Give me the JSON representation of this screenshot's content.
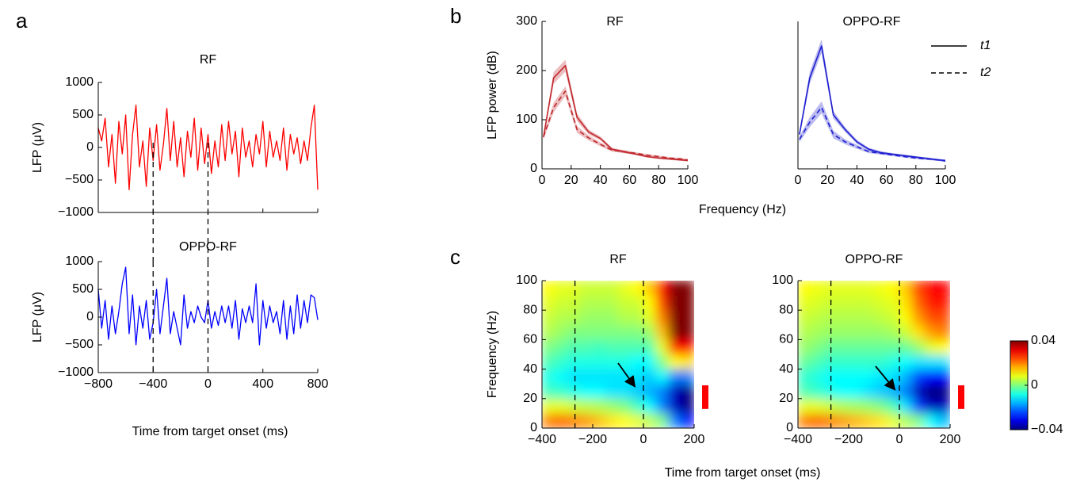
{
  "panel_labels": [
    "a",
    "b",
    "c"
  ],
  "shared_labels": {
    "a_xlabel": "Time from target onset (ms)",
    "b_xlabel": "Frequency (Hz)",
    "c_xlabel": "Time from target onset (ms)"
  },
  "chart_data": [
    {
      "type": "line",
      "title": "RF",
      "ylabel": "LFP (μV)",
      "x": [
        -800,
        -775,
        -750,
        -725,
        -700,
        -675,
        -650,
        -625,
        -600,
        -575,
        -550,
        -525,
        -500,
        -475,
        -450,
        -425,
        -400,
        -375,
        -350,
        -325,
        -300,
        -275,
        -250,
        -225,
        -200,
        -175,
        -150,
        -125,
        -100,
        -75,
        -50,
        -25,
        0,
        25,
        50,
        75,
        100,
        125,
        150,
        175,
        200,
        225,
        250,
        275,
        300,
        325,
        350,
        375,
        400,
        425,
        450,
        475,
        500,
        525,
        550,
        575,
        600,
        625,
        650,
        675,
        700,
        725,
        750,
        775,
        800
      ],
      "series": [
        {
          "color": "#ff0000",
          "values": [
            300,
            100,
            450,
            -300,
            200,
            -550,
            400,
            -100,
            500,
            -650,
            200,
            650,
            -300,
            100,
            -600,
            300,
            -200,
            350,
            -350,
            50,
            600,
            -200,
            400,
            -300,
            150,
            -450,
            250,
            -150,
            450,
            -350,
            300,
            -250,
            200,
            -400,
            100,
            -300,
            350,
            -200,
            400,
            -100,
            250,
            -450,
            300,
            -150,
            100,
            -300,
            200,
            -100,
            400,
            -300,
            250,
            -150,
            100,
            -200,
            300,
            -350,
            200,
            -100,
            150,
            -250,
            100,
            -200,
            300,
            650,
            -650
          ]
        }
      ],
      "xlim": [
        -800,
        800
      ],
      "ylim": [
        -1000,
        1000
      ],
      "xticks": [
        {
          "value": -800,
          "label": "−800"
        },
        {
          "value": -400,
          "label": "−400"
        },
        0,
        400,
        800
      ],
      "show_xtick_labels": false,
      "yticks": [
        {
          "value": -1000,
          "label": "−1000"
        },
        {
          "value": -500,
          "label": "−500"
        },
        0,
        500,
        1000
      ],
      "vlines": [
        -400,
        0
      ]
    },
    {
      "type": "line",
      "title": "OPPO-RF",
      "ylabel": "LFP (μV)",
      "x": [
        -800,
        -775,
        -750,
        -725,
        -700,
        -675,
        -650,
        -625,
        -600,
        -575,
        -550,
        -525,
        -500,
        -475,
        -450,
        -425,
        -400,
        -375,
        -350,
        -325,
        -300,
        -275,
        -250,
        -225,
        -200,
        -175,
        -150,
        -125,
        -100,
        -75,
        -50,
        -25,
        0,
        25,
        50,
        75,
        100,
        125,
        150,
        175,
        200,
        225,
        250,
        275,
        300,
        325,
        350,
        375,
        400,
        425,
        450,
        475,
        500,
        525,
        550,
        575,
        600,
        625,
        650,
        675,
        700,
        725,
        750,
        775,
        800
      ],
      "series": [
        {
          "color": "#0000ff",
          "values": [
            500,
            -200,
            300,
            -400,
            200,
            -300,
            100,
            600,
            900,
            -300,
            400,
            -500,
            200,
            -200,
            300,
            -400,
            -100,
            500,
            -300,
            200,
            700,
            -300,
            100,
            -200,
            -500,
            400,
            -200,
            100,
            -100,
            200,
            0,
            -100,
            300,
            -200,
            100,
            -150,
            200,
            -100,
            200,
            -200,
            300,
            -400,
            150,
            -100,
            200,
            -100,
            600,
            -500,
            300,
            -200,
            200,
            -100,
            100,
            -300,
            300,
            -400,
            200,
            -300,
            400,
            -200,
            300,
            -100,
            400,
            350,
            -50
          ]
        }
      ],
      "xlim": [
        -800,
        800
      ],
      "ylim": [
        -1000,
        1000
      ],
      "xticks": [
        {
          "value": -800,
          "label": "−800"
        },
        {
          "value": -400,
          "label": "−400"
        },
        0,
        400,
        800
      ],
      "show_xtick_labels": true,
      "yticks": [
        {
          "value": -1000,
          "label": "−1000"
        },
        {
          "value": -500,
          "label": "−500"
        },
        0,
        500,
        1000
      ],
      "vlines": [
        -400,
        0
      ]
    },
    {
      "type": "line",
      "title": "RF",
      "ylabel": "LFP power (dB)",
      "x": [
        1,
        8,
        16,
        24,
        32,
        40,
        48,
        56,
        64,
        72,
        80,
        88,
        96,
        100
      ],
      "series": [
        {
          "name": "t1",
          "color": "#c0282d",
          "dash": false,
          "values": [
            65,
            185,
            210,
            105,
            75,
            62,
            40,
            35,
            30,
            25,
            22,
            20,
            18,
            17
          ],
          "errors": [
            5,
            12,
            12,
            8,
            5,
            4,
            3,
            3,
            2,
            2,
            2,
            2,
            2,
            2
          ]
        },
        {
          "name": "t2",
          "color": "#c0282d",
          "dash": true,
          "values": [
            65,
            125,
            158,
            80,
            63,
            50,
            38,
            35,
            32,
            28,
            25,
            22,
            20,
            18
          ],
          "errors": [
            5,
            10,
            10,
            7,
            5,
            4,
            3,
            3,
            2,
            2,
            2,
            2,
            2,
            2
          ]
        }
      ],
      "xlim": [
        0,
        100
      ],
      "ylim": [
        0,
        300
      ],
      "xticks": [
        0,
        20,
        40,
        60,
        80,
        100
      ],
      "show_xtick_labels": true,
      "yticks": [
        0,
        100,
        200,
        300
      ]
    },
    {
      "type": "line",
      "title": "OPPO-RF",
      "x": [
        1,
        8,
        16,
        24,
        32,
        40,
        48,
        56,
        64,
        72,
        80,
        88,
        96,
        100
      ],
      "series": [
        {
          "name": "t1",
          "color": "#1f1fd0",
          "dash": false,
          "values": [
            70,
            185,
            250,
            110,
            80,
            55,
            40,
            33,
            30,
            27,
            24,
            21,
            18,
            17
          ],
          "errors": [
            6,
            12,
            14,
            8,
            5,
            4,
            3,
            3,
            2,
            2,
            2,
            2,
            2,
            2
          ]
        },
        {
          "name": "t2",
          "color": "#1f1fd0",
          "dash": true,
          "values": [
            60,
            95,
            125,
            70,
            55,
            45,
            35,
            32,
            28,
            25,
            22,
            20,
            18,
            16
          ],
          "errors": [
            6,
            10,
            12,
            8,
            5,
            4,
            3,
            3,
            2,
            2,
            2,
            2,
            2,
            2
          ]
        }
      ],
      "xlim": [
        0,
        100
      ],
      "ylim": [
        0,
        300
      ],
      "xticks": [
        0,
        20,
        40,
        60,
        80,
        100
      ],
      "show_xtick_labels": true,
      "legend": "upper right"
    },
    {
      "type": "heatmap",
      "title": "RF",
      "ylabel": "Frequency (Hz)",
      "x": [
        -375,
        -325,
        -275,
        -225,
        -175,
        -125,
        -75,
        -25,
        25,
        75,
        125,
        175
      ],
      "y": [
        5,
        15,
        25,
        35,
        45,
        55,
        65,
        75,
        85,
        95
      ],
      "values": [
        [
          0.02,
          0.022,
          0.02,
          0.018,
          0.015,
          0.012,
          0.01,
          0.008,
          0.005,
          0.0,
          -0.02,
          -0.03
        ],
        [
          0.008,
          0.008,
          0.006,
          0.005,
          0.004,
          0.002,
          0.0,
          -0.005,
          -0.01,
          -0.02,
          -0.035,
          -0.04
        ],
        [
          -0.005,
          -0.006,
          -0.008,
          -0.01,
          -0.01,
          -0.012,
          -0.012,
          -0.014,
          -0.016,
          -0.02,
          -0.035,
          -0.04
        ],
        [
          -0.008,
          -0.01,
          -0.012,
          -0.012,
          -0.012,
          -0.012,
          -0.012,
          -0.012,
          -0.014,
          -0.01,
          -0.02,
          -0.02
        ],
        [
          -0.004,
          -0.006,
          -0.008,
          -0.008,
          -0.008,
          -0.008,
          -0.008,
          -0.01,
          -0.01,
          0.0,
          0.01,
          0.012
        ],
        [
          0.0,
          -0.002,
          -0.004,
          -0.004,
          -0.005,
          -0.004,
          -0.004,
          -0.004,
          -0.004,
          0.008,
          0.03,
          0.03
        ],
        [
          0.004,
          0.002,
          0.0,
          0.0,
          0.0,
          0.0,
          0.0,
          0.0,
          0.002,
          0.015,
          0.04,
          0.04
        ],
        [
          0.006,
          0.004,
          0.004,
          0.002,
          0.002,
          0.002,
          0.004,
          0.004,
          0.008,
          0.02,
          0.04,
          0.04
        ],
        [
          0.008,
          0.006,
          0.006,
          0.004,
          0.004,
          0.004,
          0.006,
          0.006,
          0.01,
          0.025,
          0.04,
          0.04
        ],
        [
          0.01,
          0.008,
          0.008,
          0.006,
          0.006,
          0.006,
          0.008,
          0.01,
          0.014,
          0.03,
          0.04,
          0.04
        ]
      ],
      "clim": [
        -0.04,
        0.04
      ],
      "colormap": "jet",
      "xlim": [
        -400,
        200
      ],
      "ylim": [
        0,
        100
      ],
      "xticks": [
        {
          "value": -400,
          "label": "−400"
        },
        {
          "value": -200,
          "label": "−200"
        },
        0,
        200
      ],
      "show_xtick_labels": true,
      "yticks": [
        0,
        20,
        40,
        60,
        80,
        100
      ],
      "vlines": [
        -270,
        0
      ],
      "highlight": [
        13,
        29
      ],
      "highlight_color": "#ff0000"
    },
    {
      "type": "heatmap",
      "title": "OPPO-RF",
      "x": [
        -375,
        -325,
        -275,
        -225,
        -175,
        -125,
        -75,
        -25,
        25,
        75,
        125,
        175
      ],
      "y": [
        5,
        15,
        25,
        35,
        45,
        55,
        65,
        75,
        85,
        95
      ],
      "values": [
        [
          0.02,
          0.022,
          0.02,
          0.018,
          0.016,
          0.014,
          0.012,
          0.008,
          0.004,
          0.0,
          -0.01,
          -0.015
        ],
        [
          0.008,
          0.008,
          0.006,
          0.004,
          0.003,
          0.002,
          0.0,
          -0.004,
          -0.012,
          -0.025,
          -0.035,
          -0.035
        ],
        [
          -0.004,
          -0.006,
          -0.008,
          -0.01,
          -0.01,
          -0.012,
          -0.014,
          -0.016,
          -0.02,
          -0.035,
          -0.04,
          -0.04
        ],
        [
          -0.006,
          -0.008,
          -0.01,
          -0.01,
          -0.01,
          -0.01,
          -0.012,
          -0.012,
          -0.016,
          -0.025,
          -0.03,
          -0.03
        ],
        [
          -0.002,
          -0.004,
          -0.006,
          -0.006,
          -0.006,
          -0.006,
          -0.006,
          -0.008,
          -0.01,
          -0.012,
          -0.012,
          -0.012
        ],
        [
          0.002,
          0.0,
          -0.002,
          -0.002,
          -0.002,
          -0.002,
          -0.002,
          -0.002,
          -0.002,
          0.002,
          0.008,
          0.01
        ],
        [
          0.004,
          0.003,
          0.002,
          0.002,
          0.002,
          0.002,
          0.002,
          0.003,
          0.006,
          0.012,
          0.018,
          0.02
        ],
        [
          0.006,
          0.005,
          0.004,
          0.004,
          0.004,
          0.004,
          0.005,
          0.006,
          0.01,
          0.018,
          0.024,
          0.024
        ],
        [
          0.008,
          0.007,
          0.006,
          0.006,
          0.006,
          0.006,
          0.007,
          0.008,
          0.012,
          0.022,
          0.028,
          0.028
        ],
        [
          0.01,
          0.009,
          0.008,
          0.008,
          0.008,
          0.008,
          0.009,
          0.01,
          0.014,
          0.025,
          0.03,
          0.03
        ]
      ],
      "clim": [
        -0.04,
        0.04
      ],
      "colormap": "jet",
      "xlim": [
        -400,
        200
      ],
      "ylim": [
        0,
        100
      ],
      "xticks": [
        {
          "value": -400,
          "label": "−400"
        },
        {
          "value": -200,
          "label": "−200"
        },
        0,
        200
      ],
      "show_xtick_labels": true,
      "yticks": [
        0,
        20,
        40,
        60,
        80,
        100
      ],
      "vlines": [
        -270,
        0
      ],
      "highlight": [
        13,
        29
      ],
      "highlight_color": "#ff0000",
      "colorbar": {
        "lim": [
          -0.04,
          0.04
        ],
        "ticks": [
          {
            "value": -0.04,
            "label": "−0.04"
          },
          0,
          0.04
        ]
      }
    }
  ]
}
